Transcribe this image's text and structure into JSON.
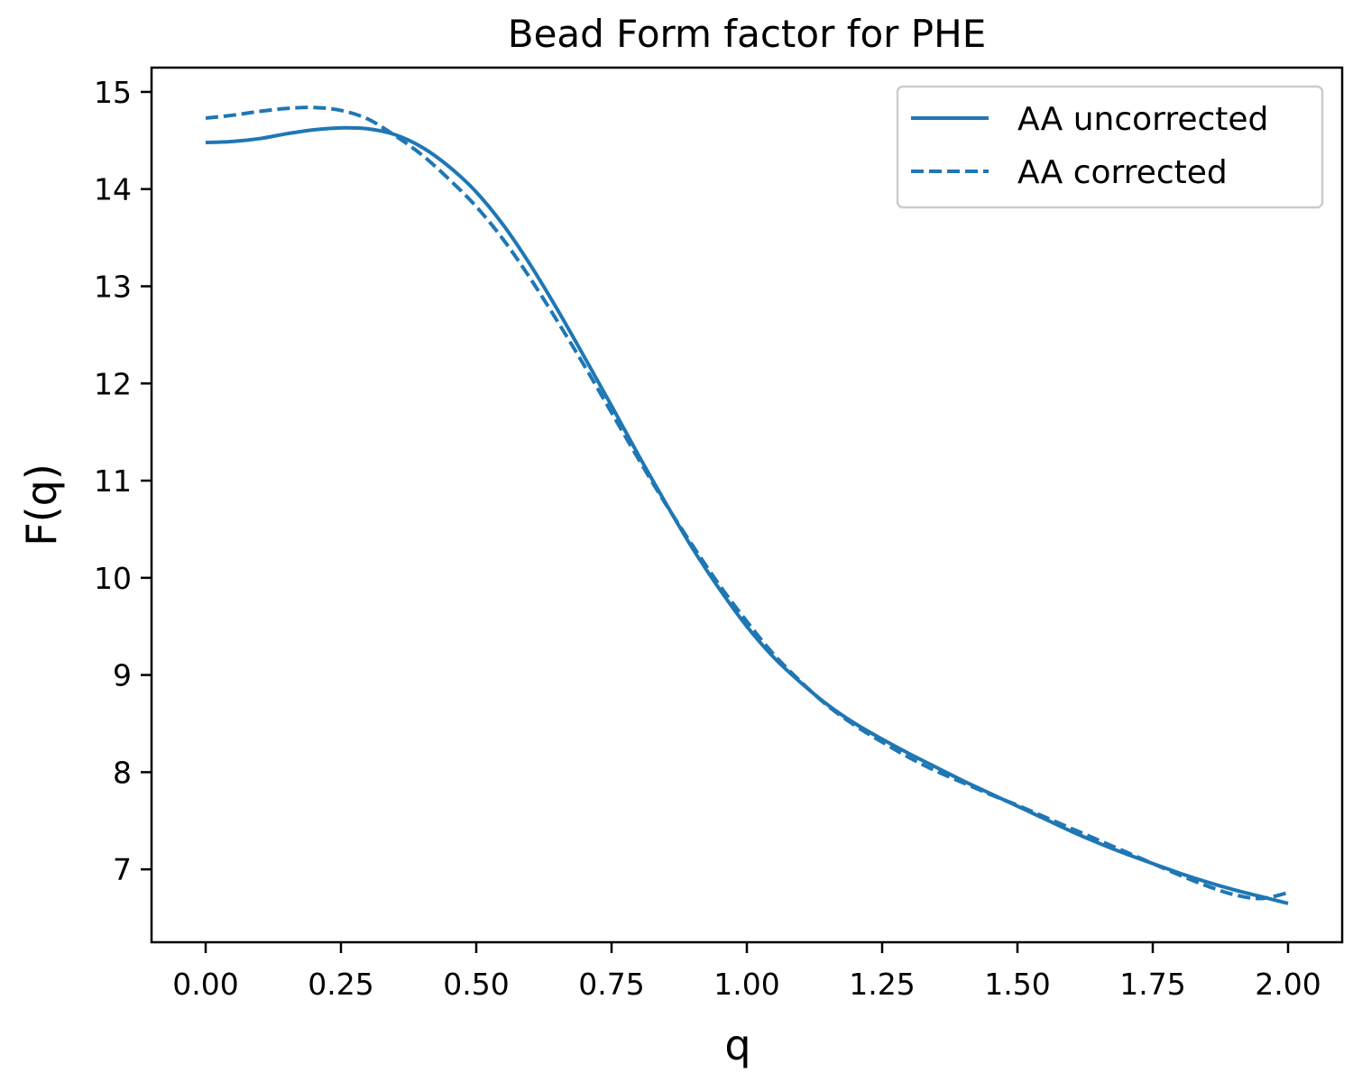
{
  "chart_data": {
    "type": "line",
    "title": "Bead Form factor for PHE",
    "xlabel": "q",
    "ylabel": "F(q)",
    "xlim": [
      -0.1,
      2.1
    ],
    "ylim": [
      6.25,
      15.25
    ],
    "xticks": [
      0.0,
      0.25,
      0.5,
      0.75,
      1.0,
      1.25,
      1.5,
      1.75,
      2.0
    ],
    "xtick_labels": [
      "0.00",
      "0.25",
      "0.50",
      "0.75",
      "1.00",
      "1.25",
      "1.50",
      "1.75",
      "2.00"
    ],
    "yticks": [
      7,
      8,
      9,
      10,
      11,
      12,
      13,
      14,
      15
    ],
    "ytick_labels": [
      "7",
      "8",
      "9",
      "10",
      "11",
      "12",
      "13",
      "14",
      "15"
    ],
    "grid": false,
    "legend_position": "top-right",
    "line_color": "#1f77b4",
    "series": [
      {
        "name": "AA uncorrected",
        "style": "solid",
        "x": [
          0.0,
          0.05,
          0.1,
          0.15,
          0.2,
          0.25,
          0.3,
          0.35,
          0.4,
          0.45,
          0.5,
          0.55,
          0.6,
          0.65,
          0.7,
          0.75,
          0.8,
          0.85,
          0.9,
          0.95,
          1.0,
          1.05,
          1.1,
          1.15,
          1.2,
          1.25,
          1.3,
          1.35,
          1.4,
          1.45,
          1.5,
          1.55,
          1.6,
          1.65,
          1.7,
          1.75,
          1.8,
          1.85,
          1.9,
          1.95,
          2.0
        ],
        "y": [
          14.48,
          14.49,
          14.52,
          14.57,
          14.61,
          14.63,
          14.62,
          14.56,
          14.43,
          14.23,
          13.97,
          13.63,
          13.22,
          12.76,
          12.27,
          11.77,
          11.26,
          10.77,
          10.3,
          9.88,
          9.5,
          9.18,
          8.92,
          8.69,
          8.5,
          8.34,
          8.19,
          8.05,
          7.91,
          7.78,
          7.65,
          7.52,
          7.39,
          7.27,
          7.16,
          7.06,
          6.96,
          6.87,
          6.79,
          6.72,
          6.65
        ]
      },
      {
        "name": "AA corrected",
        "style": "dashed",
        "x": [
          0.0,
          0.05,
          0.1,
          0.15,
          0.2,
          0.25,
          0.3,
          0.35,
          0.4,
          0.45,
          0.5,
          0.55,
          0.6,
          0.65,
          0.7,
          0.75,
          0.8,
          0.85,
          0.9,
          0.95,
          1.0,
          1.05,
          1.1,
          1.15,
          1.2,
          1.25,
          1.3,
          1.35,
          1.4,
          1.45,
          1.5,
          1.55,
          1.6,
          1.65,
          1.7,
          1.75,
          1.8,
          1.85,
          1.9,
          1.95,
          2.0
        ],
        "y": [
          14.73,
          14.76,
          14.8,
          14.83,
          14.84,
          14.81,
          14.72,
          14.55,
          14.35,
          14.1,
          13.82,
          13.48,
          13.08,
          12.64,
          12.18,
          11.7,
          11.22,
          10.76,
          10.33,
          9.92,
          9.55,
          9.21,
          8.93,
          8.68,
          8.48,
          8.31,
          8.15,
          8.01,
          7.89,
          7.77,
          7.66,
          7.54,
          7.42,
          7.3,
          7.18,
          7.06,
          6.94,
          6.83,
          6.74,
          6.7,
          6.76
        ]
      }
    ]
  }
}
